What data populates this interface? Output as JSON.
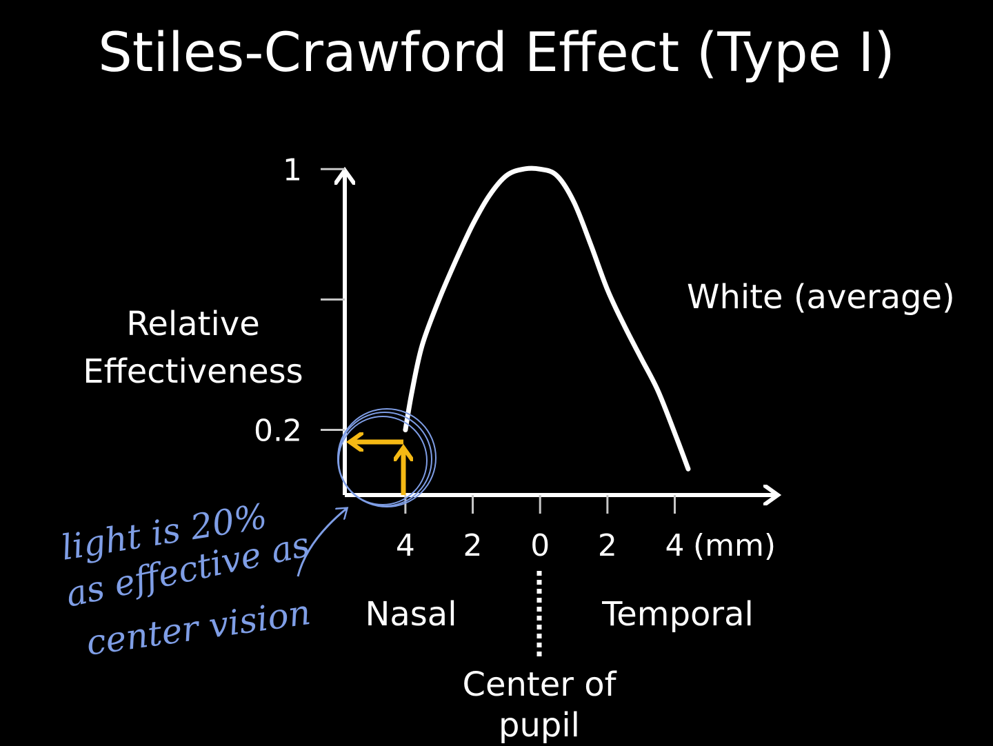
{
  "chart_data": {
    "type": "line",
    "title": "Stiles-Crawford Effect (Type I)",
    "ylabel_lines": [
      "Relative",
      "Effectiveness"
    ],
    "xunit": "(mm)",
    "yticks": [
      {
        "value": 0.2,
        "label": "0.2"
      },
      {
        "value": 0.6,
        "label": ""
      },
      {
        "value": 1.0,
        "label": "1"
      }
    ],
    "xticks": [
      {
        "value": -4,
        "label": "4"
      },
      {
        "value": -2,
        "label": "2"
      },
      {
        "value": 0,
        "label": "0"
      },
      {
        "value": 2,
        "label": "2"
      },
      {
        "value": 4,
        "label": "4"
      }
    ],
    "xlim": [
      -5.8,
      7
    ],
    "ylim": [
      0,
      1.1
    ],
    "series": [
      {
        "name": "White (average)",
        "color": "#ffffff",
        "x": [
          -4,
          -3.8,
          -3.5,
          -3.0,
          -2.5,
          -2.0,
          -1.5,
          -1.0,
          -0.5,
          0,
          0.5,
          1.0,
          1.5,
          2.0,
          2.5,
          3.0,
          3.5,
          4.0,
          4.4
        ],
        "y": [
          0.2,
          0.32,
          0.46,
          0.6,
          0.72,
          0.83,
          0.92,
          0.98,
          1.0,
          1.0,
          0.98,
          0.9,
          0.77,
          0.63,
          0.52,
          0.42,
          0.32,
          0.19,
          0.08
        ]
      }
    ],
    "region_labels": {
      "nasal": "Nasal",
      "temporal": "Temporal",
      "center_lines": [
        "Center of",
        "pupil"
      ]
    },
    "annotation_lines": [
      "light is 20%",
      "as effective as",
      "center vision"
    ],
    "colors": {
      "background": "#000000",
      "foreground": "#ffffff",
      "highlight": "#f5b914",
      "ink": "#7f9ee6"
    }
  }
}
